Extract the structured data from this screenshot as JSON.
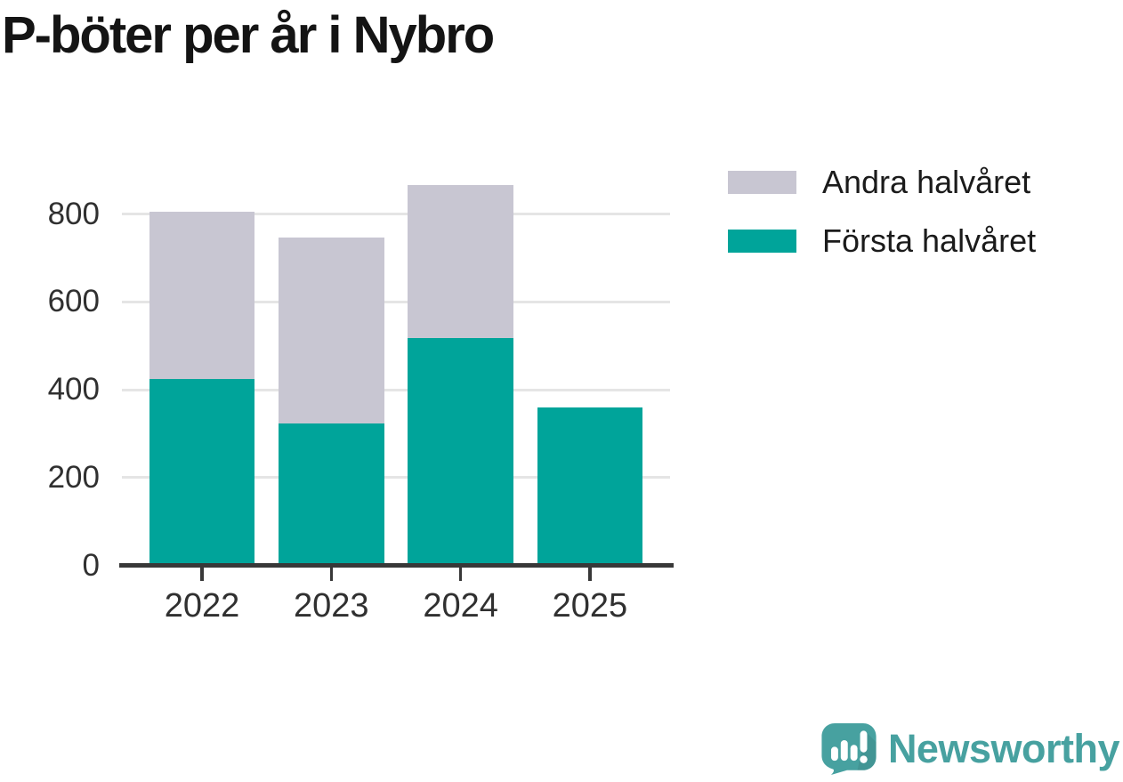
{
  "title": "P-böter per år i Nybro",
  "colors": {
    "first_half": "#00a49a",
    "second_half": "#c8c6d2",
    "gridline": "#e5e5e5",
    "axis_line": "#383838",
    "axis_text": "#303030",
    "title_text": "#141414",
    "background": "#ffffff",
    "logo_teal": "#47a1a0"
  },
  "legend": {
    "items": [
      {
        "label": "Andra halvåret",
        "series": "second_half"
      },
      {
        "label": "Första halvåret",
        "series": "first_half"
      }
    ]
  },
  "chart_data": {
    "type": "bar",
    "stacked": true,
    "title": "P-böter per år i Nybro",
    "xlabel": "",
    "ylabel": "",
    "categories": [
      "2022",
      "2023",
      "2024",
      "2025"
    ],
    "series": [
      {
        "name": "Första halvåret",
        "color": "#00a49a",
        "values": [
          421,
          320,
          514,
          357
        ]
      },
      {
        "name": "Andra halvåret",
        "color": "#c8c6d2",
        "values": [
          381,
          424,
          349,
          0
        ]
      }
    ],
    "totals": [
      802,
      744,
      863,
      357
    ],
    "y_ticks": [
      0,
      200,
      400,
      600,
      800
    ],
    "ylim": [
      0,
      900
    ],
    "grid": true,
    "legend_position": "top-right"
  },
  "branding": {
    "logo_text": "Newsworthy"
  }
}
